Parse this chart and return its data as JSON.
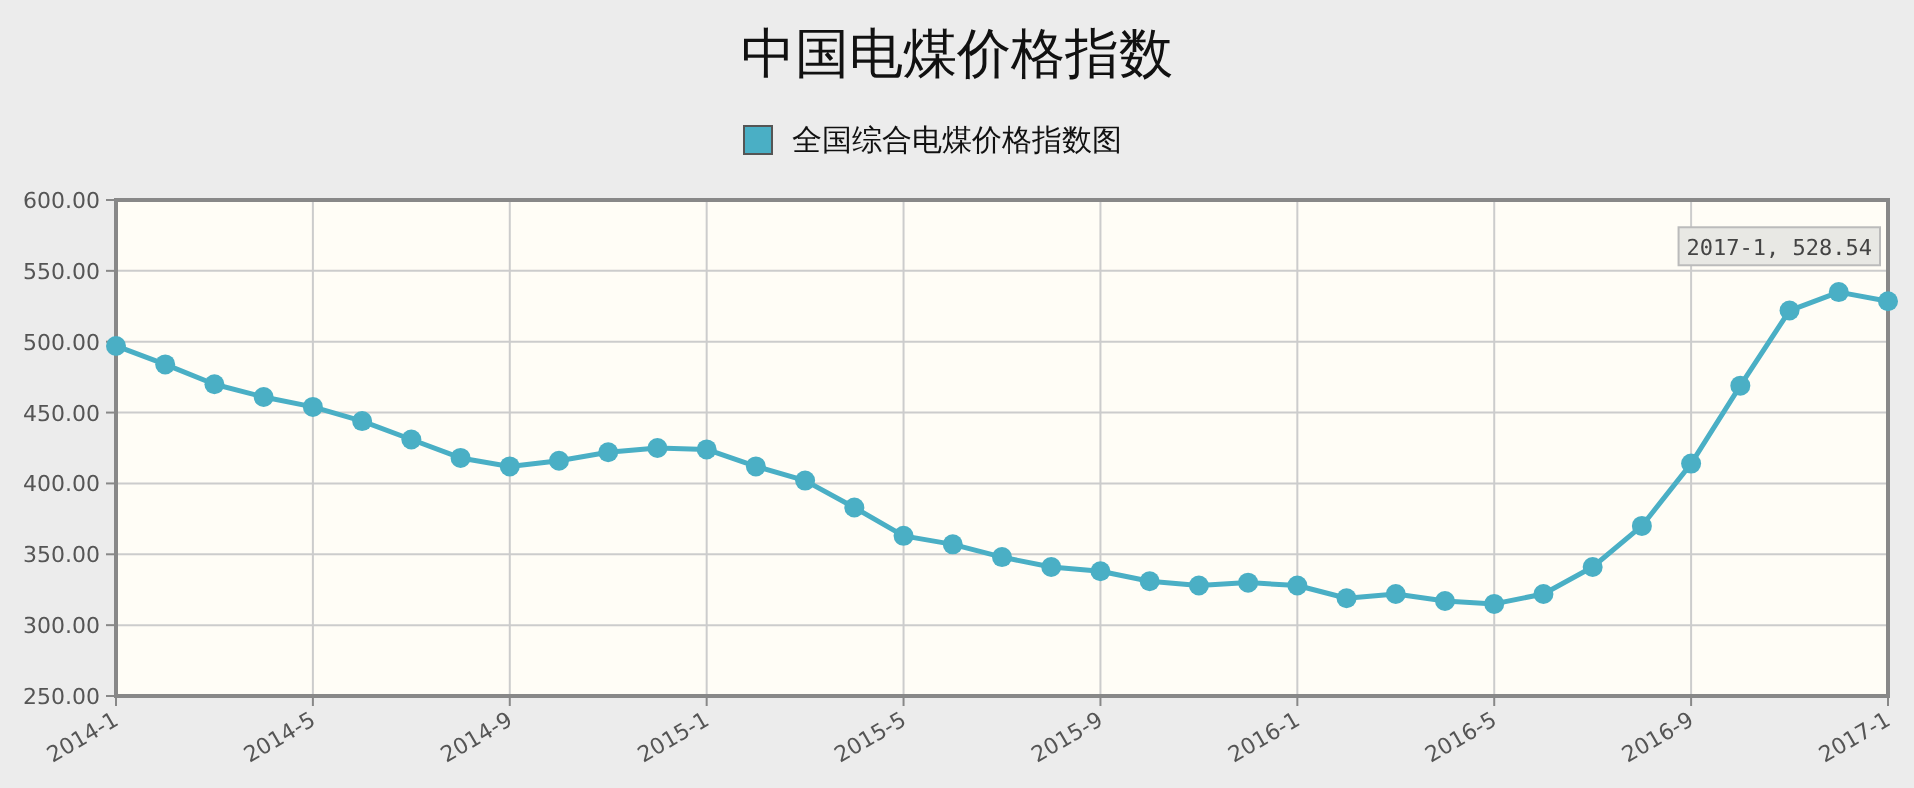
{
  "chart_data": {
    "type": "line",
    "title": "中国电煤价格指数",
    "categories": [
      "2014-1",
      null,
      null,
      null,
      "2014-5",
      null,
      null,
      null,
      "2014-9",
      null,
      null,
      null,
      "2015-1",
      null,
      null,
      null,
      "2015-5",
      null,
      null,
      null,
      "2015-9",
      null,
      null,
      null,
      "2016-1",
      null,
      null,
      null,
      "2016-5",
      null,
      null,
      null,
      "2016-9",
      null,
      null,
      null,
      "2017-1"
    ],
    "series": [
      {
        "name": "全国综合电煤价格指数图",
        "color": "#4aafc5",
        "values": [
          497,
          484,
          470,
          461,
          454,
          444,
          431,
          418,
          412,
          416,
          422,
          425,
          424,
          412,
          402,
          383,
          363,
          357,
          348,
          341,
          338,
          331,
          328,
          330,
          328,
          319,
          322,
          317,
          315,
          322,
          341,
          370,
          414,
          469,
          522,
          535,
          528.54
        ]
      }
    ],
    "ylim": [
      250,
      600
    ],
    "yticks": [
      {
        "value": 250,
        "label": "250.00"
      },
      {
        "value": 300,
        "label": "300.00"
      },
      {
        "value": 350,
        "label": "350.00"
      },
      {
        "value": 400,
        "label": "400.00"
      },
      {
        "value": 450,
        "label": "450.00"
      },
      {
        "value": 500,
        "label": "500.00"
      },
      {
        "value": 550,
        "label": "550.00"
      },
      {
        "value": 600,
        "label": "600.00"
      }
    ],
    "annotations": [
      {
        "text": "2017-1, 528.54",
        "x": "2017-1",
        "y": 528.54
      }
    ],
    "grid": true,
    "legend": "top",
    "marker": "circle",
    "line_style": "solid"
  }
}
